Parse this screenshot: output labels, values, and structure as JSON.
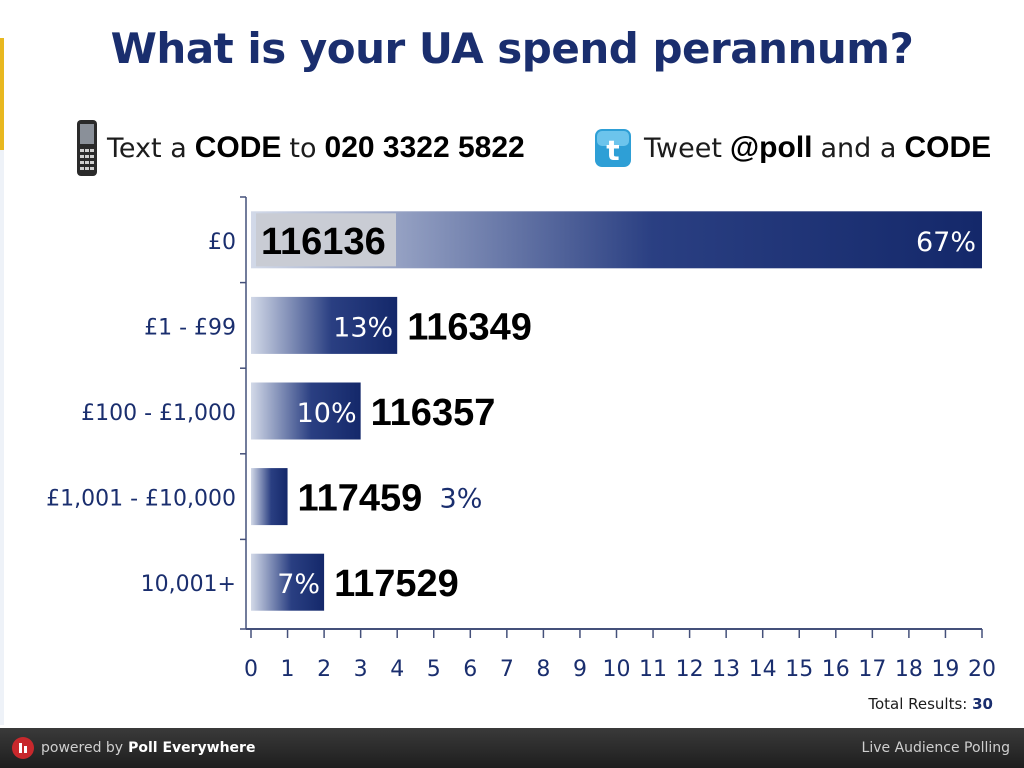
{
  "title": "What is your UA spend perannum?",
  "instructions": {
    "text_prefix": "Text a",
    "text_code": "CODE",
    "text_to": "to",
    "text_number": "020 3322 5822",
    "tweet_prefix": "Tweet",
    "tweet_handle": "@poll",
    "tweet_and": "and a",
    "tweet_code": "CODE",
    "phone_icon": "mobile-phone-icon",
    "twitter_icon": "twitter-bird-icon"
  },
  "chart_data": {
    "type": "bar",
    "orientation": "horizontal",
    "categories": [
      "£0",
      "£1 - £99",
      "£100 - £1,000",
      "£1,001 - £10,000",
      "10,001+"
    ],
    "values": [
      20,
      4,
      3,
      1,
      2
    ],
    "percent_labels": [
      "67%",
      "13%",
      "10%",
      "3%",
      "7%"
    ],
    "codes": [
      "116136",
      "116349",
      "116357",
      "117459",
      "117529"
    ],
    "xlim": [
      0,
      20
    ],
    "xticks": [
      0,
      1,
      2,
      3,
      4,
      5,
      6,
      7,
      8,
      9,
      10,
      11,
      12,
      13,
      14,
      15,
      16,
      17,
      18,
      19,
      20
    ],
    "total_label": "Total Results:",
    "total_value": "30",
    "colors": {
      "bar_dark": "#14286a",
      "bar_light": "#d2d9e8",
      "axis": "#44507a",
      "text": "#1a2e6e",
      "code_box": "#c9ccd4"
    }
  },
  "footer": {
    "logo_icon": "poll-everywhere-logo-icon",
    "powered_by": "powered by",
    "brand": "Poll Everywhere",
    "right_text": "Live Audience Polling"
  }
}
